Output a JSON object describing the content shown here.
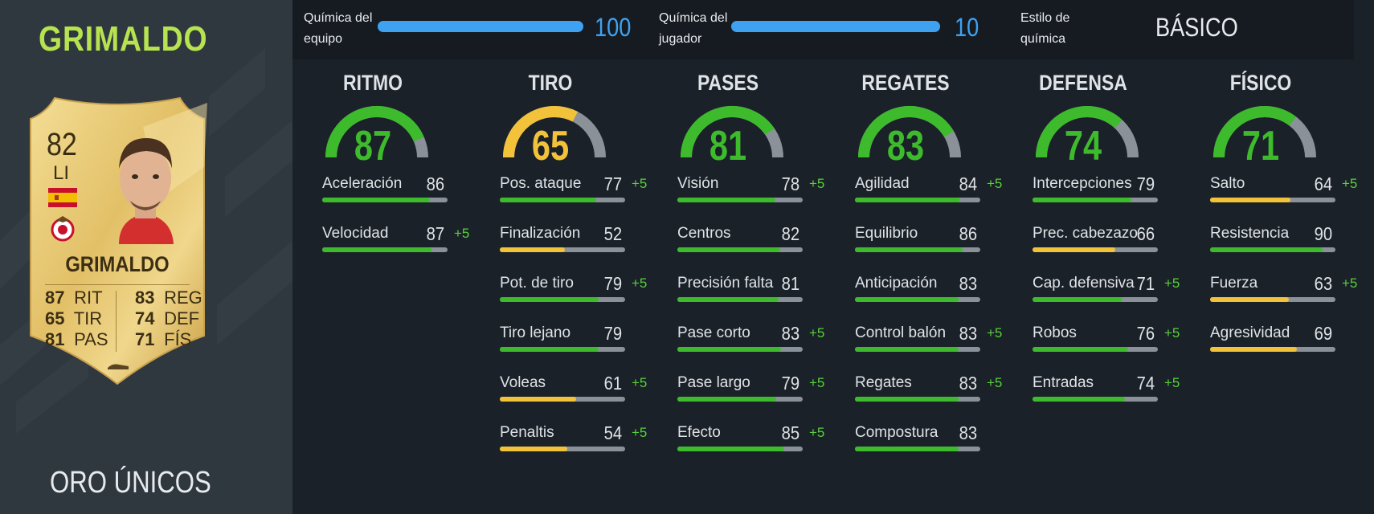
{
  "player": {
    "name": "GRIMALDO",
    "rarity": "ORO ÚNICOS",
    "card": {
      "rating": "82",
      "position": "LI",
      "name": "GRIMALDO",
      "left_stats": [
        {
          "value": "87",
          "label": "RIT"
        },
        {
          "value": "65",
          "label": "TIR"
        },
        {
          "value": "81",
          "label": "PAS"
        }
      ],
      "right_stats": [
        {
          "value": "83",
          "label": "REG"
        },
        {
          "value": "74",
          "label": "DEF"
        },
        {
          "value": "71",
          "label": "FÍS"
        }
      ]
    }
  },
  "chemistry": {
    "team": {
      "label_line1": "Química del",
      "label_line2": "equipo",
      "value": "100",
      "fill": 1.0
    },
    "player": {
      "label_line1": "Química del",
      "label_line2": "jugador",
      "value": "10",
      "fill": 1.0
    },
    "style": {
      "label_line1": "Estilo de",
      "label_line2": "química",
      "value": "BÁSICO"
    }
  },
  "colors": {
    "green": "#3dbb2d",
    "yellow": "#f2c33a",
    "grey": "#8a9199",
    "blue": "#3ea2f0",
    "name_green": "#b6e34f"
  },
  "categories": [
    {
      "title": "RITMO",
      "value": 87,
      "stats": [
        {
          "name": "Aceleración",
          "value": 86,
          "bonus": ""
        },
        {
          "name": "Velocidad",
          "value": 87,
          "bonus": "+5"
        }
      ]
    },
    {
      "title": "TIRO",
      "value": 65,
      "stats": [
        {
          "name": "Pos. ataque",
          "value": 77,
          "bonus": "+5"
        },
        {
          "name": "Finalización",
          "value": 52,
          "bonus": ""
        },
        {
          "name": "Pot. de tiro",
          "value": 79,
          "bonus": "+5"
        },
        {
          "name": "Tiro lejano",
          "value": 79,
          "bonus": ""
        },
        {
          "name": "Voleas",
          "value": 61,
          "bonus": "+5"
        },
        {
          "name": "Penaltis",
          "value": 54,
          "bonus": "+5"
        }
      ]
    },
    {
      "title": "PASES",
      "value": 81,
      "stats": [
        {
          "name": "Visión",
          "value": 78,
          "bonus": "+5"
        },
        {
          "name": "Centros",
          "value": 82,
          "bonus": ""
        },
        {
          "name": "Precisión falta",
          "value": 81,
          "bonus": ""
        },
        {
          "name": "Pase corto",
          "value": 83,
          "bonus": "+5"
        },
        {
          "name": "Pase largo",
          "value": 79,
          "bonus": "+5"
        },
        {
          "name": "Efecto",
          "value": 85,
          "bonus": "+5"
        }
      ]
    },
    {
      "title": "REGATES",
      "value": 83,
      "stats": [
        {
          "name": "Agilidad",
          "value": 84,
          "bonus": "+5"
        },
        {
          "name": "Equilibrio",
          "value": 86,
          "bonus": ""
        },
        {
          "name": "Anticipación",
          "value": 83,
          "bonus": ""
        },
        {
          "name": "Control balón",
          "value": 83,
          "bonus": "+5"
        },
        {
          "name": "Regates",
          "value": 83,
          "bonus": "+5"
        },
        {
          "name": "Compostura",
          "value": 83,
          "bonus": ""
        }
      ]
    },
    {
      "title": "DEFENSA",
      "value": 74,
      "stats": [
        {
          "name": "Intercepciones",
          "value": 79,
          "bonus": ""
        },
        {
          "name": "Prec. cabezazo",
          "value": 66,
          "bonus": ""
        },
        {
          "name": "Cap. defensiva",
          "value": 71,
          "bonus": "+5"
        },
        {
          "name": "Robos",
          "value": 76,
          "bonus": "+5"
        },
        {
          "name": "Entradas",
          "value": 74,
          "bonus": "+5"
        }
      ]
    },
    {
      "title": "FÍSICO",
      "value": 71,
      "stats": [
        {
          "name": "Salto",
          "value": 64,
          "bonus": "+5"
        },
        {
          "name": "Resistencia",
          "value": 90,
          "bonus": ""
        },
        {
          "name": "Fuerza",
          "value": 63,
          "bonus": "+5"
        },
        {
          "name": "Agresividad",
          "value": 69,
          "bonus": ""
        }
      ]
    }
  ]
}
